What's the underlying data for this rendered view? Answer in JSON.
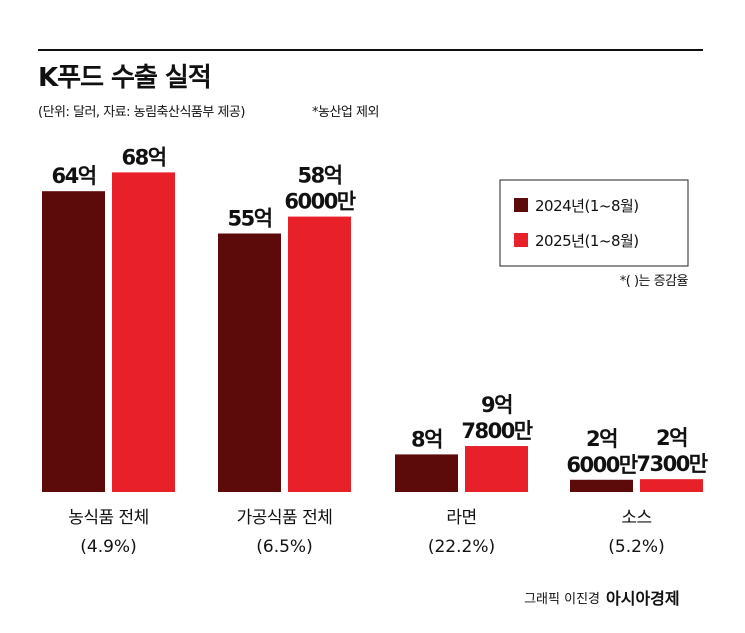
{
  "chart_data": {
    "type": "bar",
    "title": "K푸드 수출 실적",
    "subtitle": "(단위: 달러, 자료: 농림축산식품부 제공)",
    "note": "*농산업 제외",
    "legend_note": "*( )는 증감율",
    "credit": "그래픽 이진경",
    "brand": "아시아경제",
    "categories": [
      "농식품 전체",
      "가공식품 전체",
      "라면",
      "소스"
    ],
    "growth_labels": [
      "(4.9%)",
      "(6.5%)",
      "(22.2%)",
      "(5.2%)"
    ],
    "series": [
      {
        "name": "2024년(1~8월)",
        "color": "#5c0a0a",
        "values": [
          64,
          55,
          8,
          2.6
        ],
        "value_labels": [
          "64억",
          "55억",
          "8억",
          "2억 6000만"
        ]
      },
      {
        "name": "2025년(1~8월)",
        "color": "#e8202a",
        "values": [
          68,
          58.6,
          9.78,
          2.73
        ],
        "value_labels": [
          "68억",
          "58억 6000만",
          "9억 7800만",
          "2억 7300만"
        ]
      }
    ],
    "legend_position": "upper right"
  }
}
